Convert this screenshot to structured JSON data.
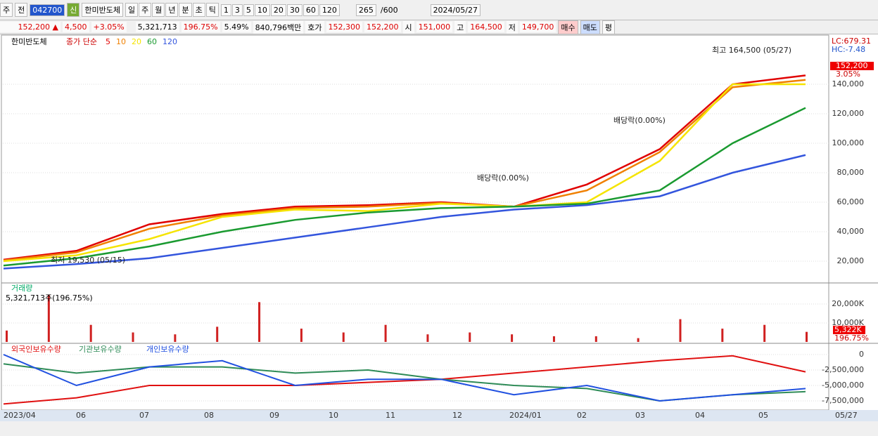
{
  "toolbar": {
    "market": "주",
    "prev": "전",
    "code": "042700",
    "tag": "신",
    "name": "한미반도체",
    "periods": [
      "일",
      "주",
      "월",
      "년",
      "분",
      "초",
      "틱"
    ],
    "intervals": [
      "1",
      "3",
      "5",
      "10",
      "20",
      "30",
      "60",
      "120"
    ],
    "count": "265",
    "max": "/600",
    "date": "2024/05/27"
  },
  "info_bar": {
    "price": "152,200 ▲",
    "change": "4,500",
    "rate": "+3.05%",
    "volume": "5,321,713",
    "vol_ratio": "196.75%",
    "turnover": "5.49%",
    "amount": "840,796백만",
    "quote_label": "호가",
    "ask": "152,300",
    "bid": "152,200",
    "open_label": "시",
    "open": "151,000",
    "high_label": "고",
    "high": "164,500",
    "low_label": "저",
    "low": "149,700",
    "buy": "매수",
    "sell": "매도",
    "avg": "평"
  },
  "x_axis": {
    "labels": [
      "2023/04",
      "06",
      "07",
      "08",
      "09",
      "10",
      "11",
      "12",
      "2024/01",
      "02",
      "03",
      "04",
      "05",
      "05/27"
    ]
  },
  "chart_data": [
    {
      "type": "line",
      "title": "한미반도체",
      "legend_label": "종가 단순",
      "ylim": [
        5700,
        172400
      ],
      "yticks": [
        {
          "value": 20000,
          "label": "20,000"
        },
        {
          "value": 40000,
          "label": "40,000"
        },
        {
          "value": 60000,
          "label": "60,000"
        },
        {
          "value": 80000,
          "label": "80,000"
        },
        {
          "value": 100000,
          "label": "100,000"
        },
        {
          "value": 120000,
          "label": "120,000"
        },
        {
          "value": 140000,
          "label": "140,000"
        }
      ],
      "series": [
        {
          "name": "5",
          "color": "#e00000",
          "values": [
            21000,
            27000,
            45000,
            52000,
            57000,
            58000,
            60000,
            57000,
            72000,
            96000,
            140000,
            146000
          ]
        },
        {
          "name": "10",
          "color": "#f08000",
          "values": [
            20500,
            26000,
            42000,
            51000,
            56000,
            57000,
            59500,
            57000,
            68000,
            94000,
            138000,
            143000
          ]
        },
        {
          "name": "20",
          "color": "#f5e400",
          "values": [
            20000,
            24000,
            35000,
            50000,
            55000,
            54000,
            59000,
            57000,
            60000,
            88000,
            140000,
            140000
          ]
        },
        {
          "name": "60",
          "color": "#1a9a30",
          "values": [
            17000,
            22000,
            30000,
            40000,
            48000,
            53000,
            56000,
            57000,
            59000,
            68000,
            100000,
            124000
          ]
        },
        {
          "name": "120",
          "color": "#3355dd",
          "values": [
            15000,
            18000,
            22000,
            29000,
            36000,
            43000,
            50000,
            55000,
            58000,
            64000,
            80000,
            92000
          ]
        }
      ],
      "side_labels": [
        "LC:679.31",
        "HC:-7.48",
        "152,200",
        "3.05%"
      ],
      "annotations": [
        "최고 164,500 (05/27)",
        "최저 19,530 (05/15)",
        "배당락(0.00%)",
        "배당락(0.00%)"
      ]
    },
    {
      "type": "bar",
      "title": "거래량",
      "subtitle": "5,321,713주(196.75%)",
      "ylim": [
        0,
        30370
      ],
      "yticks": [
        {
          "value": 10000,
          "label": "10,000K"
        },
        {
          "value": 20000,
          "label": "20,000K"
        }
      ],
      "series": [
        {
          "name": "거래량",
          "color": "#d02020",
          "values": [
            6000,
            25000,
            9000,
            5000,
            4000,
            8000,
            21000,
            7000,
            5000,
            9000,
            4000,
            5000,
            4000,
            3000,
            3000,
            2000,
            12000,
            7000,
            9000,
            5300
          ]
        }
      ],
      "side_labels": [
        "5,322K",
        "196.75%"
      ]
    },
    {
      "type": "line",
      "ylim": [
        -8522727,
        1704545
      ],
      "yticks": [
        0,
        {
          "value": -2500000,
          "label": "-2,500,000"
        },
        {
          "value": -5000000,
          "label": "-5,000,000"
        },
        {
          "value": -7500000,
          "label": "-7,500,000"
        }
      ],
      "series": [
        {
          "name": "외국인보유수량",
          "color": "#e01010",
          "values": [
            -8000000,
            -7000000,
            -5000000,
            -5000000,
            -5000000,
            -4500000,
            -4000000,
            -3000000,
            -2000000,
            -1000000,
            -200000,
            -2800000
          ]
        },
        {
          "name": "기관보유수량",
          "color": "#2e8b57",
          "values": [
            -1500000,
            -3000000,
            -2000000,
            -2000000,
            -3000000,
            -2500000,
            -4000000,
            -5000000,
            -5500000,
            -7500000,
            -6500000,
            -6000000
          ]
        },
        {
          "name": "개인보유수량",
          "color": "#2050e0",
          "values": [
            0,
            -5000000,
            -2000000,
            -1000000,
            -5000000,
            -4000000,
            -4000000,
            -6500000,
            -5000000,
            -7500000,
            -6500000,
            -5500000
          ]
        }
      ]
    }
  ]
}
